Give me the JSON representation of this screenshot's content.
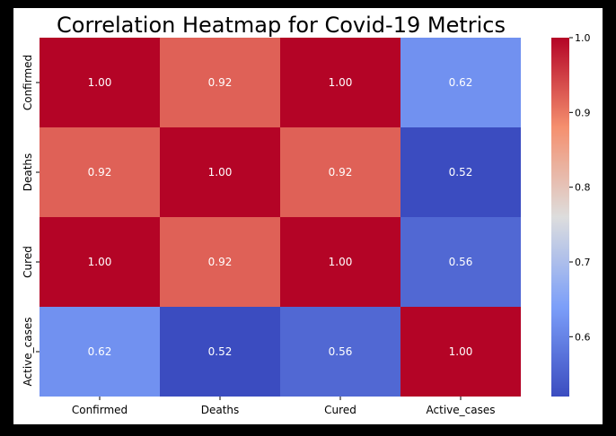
{
  "chart_data": {
    "type": "heatmap",
    "title": "Correlation Heatmap for Covid-19 Metrics",
    "x_labels": [
      "Confirmed",
      "Deaths",
      "Cured",
      "Active_cases"
    ],
    "y_labels": [
      "Confirmed",
      "Deaths",
      "Cured",
      "Active_cases"
    ],
    "values": [
      [
        1.0,
        0.92,
        1.0,
        0.62
      ],
      [
        0.92,
        1.0,
        0.92,
        0.52
      ],
      [
        1.0,
        0.92,
        1.0,
        0.56
      ],
      [
        0.62,
        0.52,
        0.56,
        1.0
      ]
    ],
    "value_format": "0.00",
    "colormap": "coolwarm",
    "colorbar": {
      "range": [
        0.52,
        1.0
      ],
      "ticks": [
        "0.6",
        "0.7",
        "0.8",
        "0.9",
        "1.0"
      ],
      "position": "right"
    },
    "grid": false
  },
  "colors": {
    "background": "#000000",
    "figure": "#ffffff"
  }
}
